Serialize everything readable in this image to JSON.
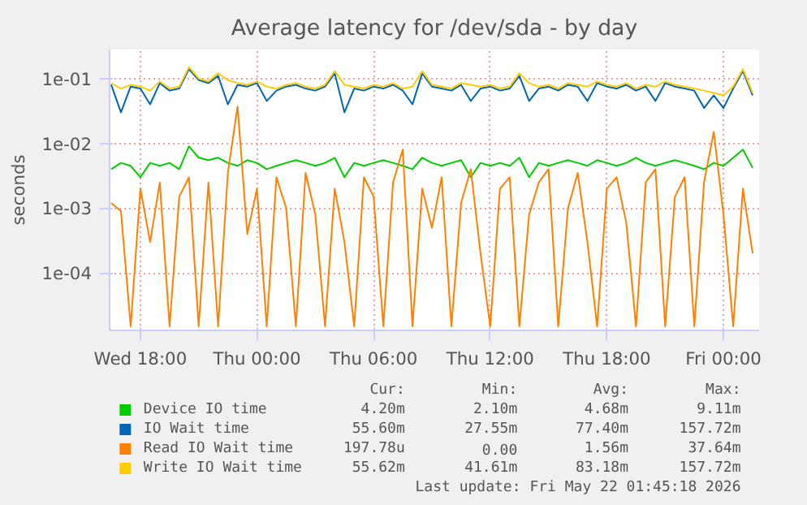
{
  "chart_data": {
    "type": "line",
    "title": "Average latency for /dev/sda - by day",
    "ylabel": "seconds",
    "x": [
      "2026-05-20T16:30",
      "2026-05-20T17:00",
      "2026-05-20T17:30",
      "2026-05-20T18:00",
      "2026-05-20T18:30",
      "2026-05-20T19:00",
      "2026-05-20T19:30",
      "2026-05-20T20:00",
      "2026-05-20T20:30",
      "2026-05-20T21:00",
      "2026-05-20T21:30",
      "2026-05-20T22:00",
      "2026-05-20T22:30",
      "2026-05-20T23:00",
      "2026-05-20T23:30",
      "2026-05-21T00:00",
      "2026-05-21T00:30",
      "2026-05-21T01:00",
      "2026-05-21T01:30",
      "2026-05-21T02:00",
      "2026-05-21T02:30",
      "2026-05-21T03:00",
      "2026-05-21T03:30",
      "2026-05-21T04:00",
      "2026-05-21T04:30",
      "2026-05-21T05:00",
      "2026-05-21T05:30",
      "2026-05-21T06:00",
      "2026-05-21T06:30",
      "2026-05-21T07:00",
      "2026-05-21T07:30",
      "2026-05-21T08:00",
      "2026-05-21T08:30",
      "2026-05-21T09:00",
      "2026-05-21T09:30",
      "2026-05-21T10:00",
      "2026-05-21T10:30",
      "2026-05-21T11:00",
      "2026-05-21T11:30",
      "2026-05-21T12:00",
      "2026-05-21T12:30",
      "2026-05-21T13:00",
      "2026-05-21T13:30",
      "2026-05-21T14:00",
      "2026-05-21T14:30",
      "2026-05-21T15:00",
      "2026-05-21T15:30",
      "2026-05-21T16:00",
      "2026-05-21T16:30",
      "2026-05-21T17:00",
      "2026-05-21T17:30",
      "2026-05-21T18:00",
      "2026-05-21T18:30",
      "2026-05-21T19:00",
      "2026-05-21T19:30",
      "2026-05-21T20:00",
      "2026-05-21T20:30",
      "2026-05-21T21:00",
      "2026-05-21T21:30",
      "2026-05-21T22:00",
      "2026-05-21T22:30",
      "2026-05-21T23:00",
      "2026-05-21T23:30",
      "2026-05-22T00:00",
      "2026-05-22T00:30",
      "2026-05-22T01:00",
      "2026-05-22T01:30"
    ],
    "series": [
      {
        "name": "Device IO time",
        "color": "#00cc00",
        "values": [
          0.004,
          0.005,
          0.0045,
          0.003,
          0.005,
          0.0045,
          0.005,
          0.004,
          0.009,
          0.006,
          0.0055,
          0.006,
          0.005,
          0.0045,
          0.0055,
          0.005,
          0.004,
          0.0045,
          0.005,
          0.0055,
          0.005,
          0.0045,
          0.005,
          0.006,
          0.003,
          0.005,
          0.0045,
          0.005,
          0.0055,
          0.005,
          0.0045,
          0.004,
          0.006,
          0.005,
          0.0045,
          0.005,
          0.0055,
          0.003,
          0.005,
          0.0045,
          0.005,
          0.0045,
          0.006,
          0.003,
          0.005,
          0.0045,
          0.005,
          0.0055,
          0.005,
          0.0045,
          0.0055,
          0.005,
          0.0045,
          0.005,
          0.006,
          0.005,
          0.0045,
          0.005,
          0.0055,
          0.005,
          0.0045,
          0.004,
          0.005,
          0.0045,
          0.006,
          0.008,
          0.0042
        ]
      },
      {
        "name": "IO Wait time",
        "color": "#0066b3",
        "values": [
          0.08,
          0.03,
          0.075,
          0.07,
          0.04,
          0.085,
          0.065,
          0.07,
          0.14,
          0.095,
          0.085,
          0.11,
          0.04,
          0.08,
          0.075,
          0.085,
          0.045,
          0.065,
          0.075,
          0.08,
          0.07,
          0.065,
          0.075,
          0.12,
          0.03,
          0.07,
          0.065,
          0.075,
          0.07,
          0.08,
          0.065,
          0.04,
          0.12,
          0.075,
          0.07,
          0.065,
          0.08,
          0.045,
          0.07,
          0.075,
          0.065,
          0.07,
          0.11,
          0.045,
          0.07,
          0.075,
          0.065,
          0.08,
          0.075,
          0.045,
          0.085,
          0.075,
          0.07,
          0.08,
          0.065,
          0.075,
          0.045,
          0.085,
          0.075,
          0.07,
          0.065,
          0.035,
          0.055,
          0.035,
          0.07,
          0.13,
          0.055
        ]
      },
      {
        "name": "Read IO Wait time",
        "color": "#ff8000",
        "values": [
          0.0012,
          0.0009,
          1.5e-05,
          0.002,
          0.0003,
          0.0025,
          1.5e-05,
          0.0015,
          0.003,
          1.5e-05,
          0.0025,
          1.5e-05,
          0.0035,
          0.037,
          0.0004,
          0.002,
          1.5e-05,
          0.003,
          0.001,
          1.5e-05,
          0.0035,
          0.0008,
          1.5e-05,
          0.002,
          0.0003,
          1.5e-05,
          0.003,
          0.0015,
          1.5e-05,
          0.0025,
          0.008,
          1.5e-05,
          0.002,
          0.0005,
          0.003,
          1.5e-05,
          0.0012,
          0.004,
          0.0002,
          1.5e-05,
          0.002,
          0.003,
          1.5e-05,
          0.0008,
          0.0025,
          0.004,
          1.5e-05,
          0.001,
          0.0035,
          0.0003,
          1.5e-05,
          0.002,
          0.003,
          0.0006,
          1.5e-05,
          0.0025,
          0.004,
          1.5e-05,
          0.0015,
          0.003,
          1.5e-05,
          0.0025,
          0.015,
          0.0008,
          1.5e-05,
          0.002,
          0.0002
        ]
      },
      {
        "name": "Write IO Wait time",
        "color": "#ffcc00",
        "values": [
          0.085,
          0.07,
          0.08,
          0.075,
          0.065,
          0.09,
          0.07,
          0.075,
          0.15,
          0.1,
          0.09,
          0.12,
          0.095,
          0.085,
          0.08,
          0.09,
          0.075,
          0.07,
          0.08,
          0.085,
          0.075,
          0.07,
          0.08,
          0.13,
          0.08,
          0.075,
          0.07,
          0.08,
          0.075,
          0.085,
          0.07,
          0.075,
          0.13,
          0.08,
          0.075,
          0.07,
          0.085,
          0.08,
          0.075,
          0.08,
          0.07,
          0.075,
          0.12,
          0.085,
          0.075,
          0.08,
          0.07,
          0.085,
          0.08,
          0.075,
          0.09,
          0.08,
          0.075,
          0.085,
          0.07,
          0.08,
          0.075,
          0.09,
          0.08,
          0.075,
          0.07,
          0.065,
          0.06,
          0.055,
          0.075,
          0.14,
          0.06
        ]
      }
    ],
    "xlim": [
      "2026-05-20T16:25",
      "2026-05-22T01:50"
    ],
    "xticks": [
      {
        "value": "2026-05-20T18:00",
        "label": "Wed 18:00"
      },
      {
        "value": "2026-05-21T00:00",
        "label": "Thu 00:00"
      },
      {
        "value": "2026-05-21T06:00",
        "label": "Thu 06:00"
      },
      {
        "value": "2026-05-21T12:00",
        "label": "Thu 12:00"
      },
      {
        "value": "2026-05-21T18:00",
        "label": "Thu 18:00"
      },
      {
        "value": "2026-05-22T00:00",
        "label": "Fri 00:00"
      }
    ],
    "ylim": [
      1.3e-05,
      0.28
    ],
    "yticks": [
      {
        "value": 0.0001,
        "label": "1e-04"
      },
      {
        "value": 0.001,
        "label": "1e-03"
      },
      {
        "value": 0.01,
        "label": "1e-02"
      },
      {
        "value": 0.1,
        "label": "1e-01"
      }
    ],
    "log": true,
    "grid": true,
    "legend": "bottom",
    "line_style": "solid",
    "annotations": [
      "Cur:",
      "Min:",
      "Avg:",
      "Max:",
      "4.20m",
      "2.10m",
      "4.68m",
      "9.11m",
      "55.60m",
      "27.55m",
      "77.40m",
      "157.72m",
      "197.78u",
      "0.00",
      "1.56m",
      "37.64m",
      "55.62m",
      "41.61m",
      "83.18m",
      "157.72m",
      "Last update: Fri May 22 01:45:18 2026"
    ]
  }
}
